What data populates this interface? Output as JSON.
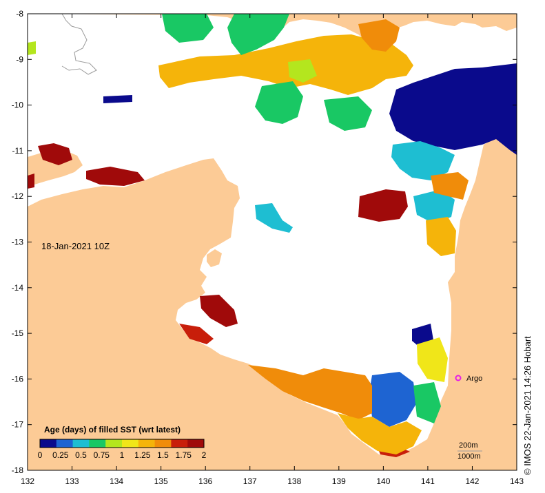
{
  "map": {
    "date_label": "18-Jan-2021 10Z",
    "legend_title": "Age (days) of filled SST (wrt latest)",
    "legend_ticks": [
      "0",
      "0.25",
      "0.5",
      "0.75",
      "1",
      "1.25",
      "1.5",
      "1.75",
      "2"
    ],
    "legend_colors": [
      "#0a0a8c",
      "#1e64d2",
      "#1ebed2",
      "#19c864",
      "#b4e61e",
      "#f0e619",
      "#f5b40a",
      "#f08c0a",
      "#c81e0a",
      "#a00a0a"
    ],
    "marker_label": "Argo",
    "marker_color": "#e61ee6",
    "isobath_labels": [
      "200m",
      "1000m"
    ],
    "credit": "© IMOS 22-Jan-2021 14:26 Hobart",
    "land_color": "#fccb96",
    "x_ticks": [
      "132",
      "133",
      "134",
      "135",
      "136",
      "137",
      "138",
      "139",
      "140",
      "141",
      "142",
      "143"
    ],
    "y_ticks": [
      "-8",
      "-9",
      "-10",
      "-11",
      "-12",
      "-13",
      "-14",
      "-15",
      "-16",
      "-17",
      "-18"
    ]
  }
}
